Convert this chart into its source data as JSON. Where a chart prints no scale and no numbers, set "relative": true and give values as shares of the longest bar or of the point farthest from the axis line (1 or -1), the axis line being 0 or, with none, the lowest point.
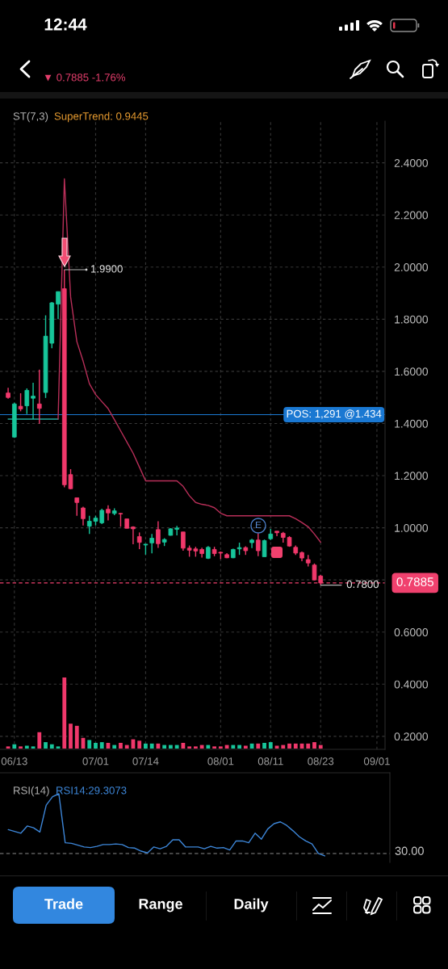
{
  "chart_data": [
    {
      "type": "other",
      "annotations": [
        "12:44",
        "▼ 0.7885 -1.76%"
      ]
    },
    {
      "type": "candlestick",
      "categories": [
        null,
        "06/13",
        null,
        null,
        null,
        null,
        null,
        null,
        null,
        null,
        null,
        null,
        null,
        null,
        "07/01",
        null,
        null,
        null,
        null,
        null,
        null,
        null,
        "07/14",
        null,
        null,
        null,
        null,
        null,
        null,
        null,
        null,
        null,
        null,
        null,
        "08/01",
        null,
        null,
        null,
        null,
        null,
        null,
        null,
        "08/11",
        null,
        null,
        null,
        null,
        null,
        null,
        null,
        "08/23",
        null,
        null,
        null,
        null,
        null,
        null,
        null,
        null,
        "09/01"
      ],
      "ohlc": [
        [
          1.517,
          1.537,
          1.495,
          1.5
        ],
        [
          1.348,
          1.48,
          1.345,
          1.475
        ],
        [
          1.466,
          1.516,
          1.447,
          1.456
        ],
        [
          1.468,
          1.535,
          1.436,
          1.527
        ],
        [
          1.497,
          1.556,
          1.417,
          1.505
        ],
        [
          1.475,
          1.607,
          1.399,
          1.458
        ],
        [
          1.519,
          1.815,
          1.498,
          1.735
        ],
        [
          1.708,
          1.866,
          1.689,
          1.863
        ],
        [
          1.858,
          1.906,
          1.8,
          1.906
        ],
        [
          1.917,
          1.99,
          1.155,
          1.165
        ],
        [
          1.204,
          1.225,
          1.148,
          1.15
        ],
        [
          1.115,
          1.115,
          1.046,
          1.097
        ],
        [
          1.076,
          1.081,
          1.009,
          1.035
        ],
        [
          1.006,
          1.046,
          0.976,
          1.025
        ],
        [
          1.025,
          1.046,
          1.009,
          1.037
        ],
        [
          1.019,
          1.073,
          1.014,
          1.067
        ],
        [
          1.071,
          1.086,
          1.028,
          1.057
        ],
        [
          1.055,
          1.075,
          1.048,
          1.065
        ],
        [
          1.055,
          1.057,
          1.004,
          1.053
        ],
        [
          1.034,
          1.034,
          0.998,
          0.998
        ],
        [
          1.003,
          1.006,
          0.937,
          0.996
        ],
        [
          0.966,
          0.982,
          0.918,
          0.944
        ],
        [
          0.934,
          0.938,
          0.897,
          0.937
        ],
        [
          0.942,
          0.976,
          0.902,
          0.96
        ],
        [
          0.993,
          1.025,
          0.923,
          0.939
        ],
        [
          0.945,
          0.96,
          0.93,
          0.955
        ],
        [
          0.971,
          0.999,
          0.97,
          0.996
        ],
        [
          0.994,
          1.007,
          0.971,
          0.999
        ],
        [
          0.984,
          0.984,
          0.912,
          0.922
        ],
        [
          0.922,
          0.932,
          0.889,
          0.914
        ],
        [
          0.919,
          0.927,
          0.889,
          0.911
        ],
        [
          0.917,
          0.924,
          0.886,
          0.901
        ],
        [
          0.883,
          0.93,
          0.88,
          0.925
        ],
        [
          0.917,
          0.927,
          0.891,
          0.901
        ],
        [
          0.906,
          0.909,
          0.88,
          0.903
        ],
        [
          0.897,
          0.903,
          0.883,
          0.885
        ],
        [
          0.885,
          0.92,
          0.883,
          0.917
        ],
        [
          0.919,
          0.943,
          0.896,
          0.924
        ],
        [
          0.924,
          0.929,
          0.896,
          0.912
        ],
        [
          0.943,
          0.958,
          0.922,
          0.953
        ],
        [
          0.953,
          0.979,
          0.891,
          0.912
        ],
        [
          0.889,
          0.955,
          0.889,
          0.951
        ],
        [
          0.958,
          0.996,
          0.953,
          0.976
        ],
        [
          0.987,
          0.987,
          0.968,
          0.981
        ],
        [
          0.979,
          0.984,
          0.943,
          0.963
        ],
        [
          0.963,
          0.968,
          0.927,
          0.93
        ],
        [
          0.925,
          0.932,
          0.896,
          0.903
        ],
        [
          0.905,
          0.909,
          0.872,
          0.884
        ],
        [
          0.878,
          0.896,
          0.852,
          0.865
        ],
        [
          0.857,
          0.863,
          0.798,
          0.8
        ],
        [
          0.815,
          0.819,
          0.78,
          0.7885
        ],
        null,
        null,
        null,
        null,
        null,
        null,
        null,
        null,
        null
      ],
      "colors": [
        "#f0386b",
        "#17c59a",
        "#f0386b",
        "#17c59a",
        "#17c59a",
        "#f0386b",
        "#17c59a",
        "#17c59a",
        "#17c59a",
        "#f0386b",
        "#f0386b",
        "#f0386b",
        "#f0386b",
        "#17c59a",
        "#17c59a",
        "#17c59a",
        "#f0386b",
        "#17c59a",
        "#f0386b",
        "#f0386b",
        "#f0386b",
        "#f0386b",
        "#17c59a",
        "#17c59a",
        "#f0386b",
        "#17c59a",
        "#17c59a",
        "#17c59a",
        "#f0386b",
        "#f0386b",
        "#f0386b",
        "#f0386b",
        "#17c59a",
        "#f0386b",
        "#f0386b",
        "#f0386b",
        "#17c59a",
        "#17c59a",
        "#f0386b",
        "#17c59a",
        "#f0386b",
        "#17c59a",
        "#17c59a",
        "#f0386b",
        "#f0386b",
        "#f0386b",
        "#f0386b",
        "#f0386b",
        "#f0386b",
        "#f0386b",
        "#f0386b",
        null,
        null,
        null,
        null,
        null,
        null,
        null,
        null,
        null
      ],
      "series": [
        {
          "type": "line",
          "color": "#26a69a",
          "values": [
            1.417,
            1.417,
            1.417,
            1.417,
            1.417,
            1.417,
            1.417,
            1.417,
            1.417,
            null,
            null,
            null,
            null,
            null,
            null,
            null,
            null,
            null,
            null,
            null,
            null,
            null,
            null,
            null,
            null,
            null,
            null,
            null,
            null,
            null,
            null,
            null,
            null,
            null,
            null,
            null,
            null,
            null,
            null,
            null,
            null,
            null,
            null,
            null,
            null,
            null,
            null,
            null,
            null,
            null,
            null,
            null,
            null,
            null,
            null,
            null,
            null,
            null,
            null,
            null
          ]
        },
        {
          "type": "line",
          "color": "#b92f59",
          "values": [
            null,
            null,
            null,
            null,
            null,
            null,
            null,
            null,
            1.417,
            2.339,
            1.885,
            1.714,
            1.639,
            1.553,
            1.511,
            1.484,
            1.457,
            1.415,
            1.372,
            1.329,
            1.286,
            1.233,
            1.18,
            1.18,
            1.18,
            1.18,
            1.18,
            1.18,
            1.159,
            1.123,
            1.097,
            1.09,
            1.086,
            1.077,
            1.056,
            1.046,
            1.046,
            1.046,
            1.046,
            1.046,
            1.046,
            1.046,
            1.046,
            1.046,
            1.046,
            1.046,
            1.035,
            1.02,
            1.004,
            0.976,
            0.9445,
            null,
            null,
            null,
            null,
            null,
            null,
            null,
            null,
            null
          ]
        }
      ],
      "ylim": [
        0.15,
        2.56
      ],
      "yticks": [
        {
          "value": 0.2,
          "label": "0.2000"
        },
        {
          "value": 0.4,
          "label": "0.4000"
        },
        {
          "value": 0.6,
          "label": "0.6000"
        },
        {
          "value": 0.8,
          "label": null
        },
        {
          "value": 1.0,
          "label": "1.0000"
        },
        {
          "value": 1.2,
          "label": "1.2000"
        },
        {
          "value": 1.4,
          "label": "1.4000"
        },
        {
          "value": 1.6,
          "label": "1.6000"
        },
        {
          "value": 1.8,
          "label": "1.8000"
        },
        {
          "value": 2.0,
          "label": "2.0000"
        },
        {
          "value": 2.2,
          "label": "2.2000"
        },
        {
          "value": 2.4,
          "label": "2.4000"
        }
      ],
      "grid": true,
      "ref_lines": [
        {
          "axis": "y",
          "value": 1.434,
          "label": "POS: 1,291 @1.434",
          "color": "#1a78d2",
          "line_style": "solid"
        },
        {
          "axis": "y",
          "value": 0.7885,
          "label": "0.7885",
          "color": "#f0416e",
          "line_style": "dashed"
        }
      ],
      "annotations": [
        "1.9900",
        {
          "text": "0.7800",
          "x": "08/23",
          "y": 0.78
        },
        "E",
        "ST(7,3)",
        "SuperTrend: 0.9445"
      ]
    },
    {
      "type": "bar",
      "relative": true,
      "categories": [
        null,
        null,
        null,
        null,
        null,
        null,
        null,
        null,
        null,
        null,
        null,
        null,
        null,
        null,
        null,
        null,
        null,
        null,
        null,
        null,
        null,
        null,
        null,
        null,
        null,
        null,
        null,
        null,
        null,
        null,
        null,
        null,
        null,
        null,
        null,
        null,
        null,
        null,
        null,
        null,
        null,
        null,
        null,
        null,
        null,
        null,
        null,
        null,
        null,
        null,
        null,
        null,
        null,
        null,
        null,
        null,
        null,
        null,
        null,
        null
      ],
      "values": [
        0.03,
        0.06,
        0.03,
        0.04,
        0.03,
        0.23,
        0.09,
        0.06,
        0.03,
        1,
        0.35,
        0.32,
        0.15,
        0.12,
        0.08,
        0.09,
        0.08,
        0.05,
        0.08,
        0.05,
        0.13,
        0.11,
        0.07,
        0.07,
        0.07,
        0.05,
        0.05,
        0.05,
        0.08,
        0.03,
        0.03,
        0.05,
        0.05,
        0.03,
        0.03,
        0.05,
        0.05,
        0.05,
        0.04,
        0.07,
        0.07,
        0.08,
        0.09,
        0.04,
        0.05,
        0.07,
        0.07,
        0.07,
        0.07,
        0.09,
        0.05,
        null,
        null,
        null,
        null,
        null,
        null,
        null,
        null,
        null
      ],
      "colors": [
        "#f0386b",
        "#17c59a",
        "#f0386b",
        "#17c59a",
        "#17c59a",
        "#f0386b",
        "#17c59a",
        "#17c59a",
        "#17c59a",
        "#f0386b",
        "#f0386b",
        "#f0386b",
        "#f0386b",
        "#17c59a",
        "#17c59a",
        "#17c59a",
        "#f0386b",
        "#17c59a",
        "#f0386b",
        "#f0386b",
        "#f0386b",
        "#f0386b",
        "#17c59a",
        "#17c59a",
        "#f0386b",
        "#17c59a",
        "#17c59a",
        "#17c59a",
        "#f0386b",
        "#f0386b",
        "#f0386b",
        "#f0386b",
        "#17c59a",
        "#f0386b",
        "#f0386b",
        "#f0386b",
        "#17c59a",
        "#17c59a",
        "#f0386b",
        "#17c59a",
        "#f0386b",
        "#17c59a",
        "#17c59a",
        "#f0386b",
        "#f0386b",
        "#f0386b",
        "#f0386b",
        "#f0386b",
        "#f0386b",
        "#f0386b",
        "#f0386b",
        null,
        null,
        null,
        null,
        null,
        null,
        null,
        null,
        null
      ]
    },
    {
      "type": "line",
      "relative": true,
      "categories": [
        null,
        null,
        null,
        null,
        null,
        null,
        null,
        null,
        null,
        null,
        null,
        null,
        null,
        null,
        null,
        null,
        null,
        null,
        null,
        null,
        null,
        null,
        null,
        null,
        null,
        null,
        null,
        null,
        null,
        null,
        null,
        null,
        null,
        null,
        null,
        null,
        null,
        null,
        null,
        null,
        null,
        null,
        null,
        null,
        null,
        null,
        null,
        null,
        null,
        null,
        null,
        null,
        null,
        null,
        null,
        null,
        null,
        null,
        null,
        null
      ],
      "series": [
        {
          "color": "#3d86d8",
          "values": [
            0.4,
            0.37,
            0.34,
            0.46,
            0.43,
            0.36,
            0.81,
            0.95,
            1,
            0.18,
            0.17,
            0.14,
            0.11,
            0.1,
            0.12,
            0.15,
            0.15,
            0.16,
            0.15,
            0.1,
            0.09,
            0.04,
            0.01,
            0.11,
            0.08,
            0.12,
            0.23,
            0.23,
            0.11,
            0.11,
            0.11,
            0.08,
            0.12,
            0.09,
            0.1,
            0.06,
            0.21,
            0.21,
            0.18,
            0.34,
            0.24,
            0.41,
            0.5,
            0.53,
            0.47,
            0.38,
            0.28,
            0.21,
            0.16,
            0,
            -0.04,
            null,
            null,
            null,
            null,
            null,
            null,
            null,
            null,
            null
          ]
        }
      ],
      "ref_lines": [
        {
          "axis": "y",
          "value": 0,
          "color": "#8a8a8a",
          "line_style": "dashed"
        }
      ],
      "annotations": [
        "RSI(14)",
        "RSI14:29.3073",
        "30.00"
      ]
    },
    {
      "type": "other",
      "annotations": [
        "Trade",
        "Range",
        "Daily"
      ]
    }
  ]
}
